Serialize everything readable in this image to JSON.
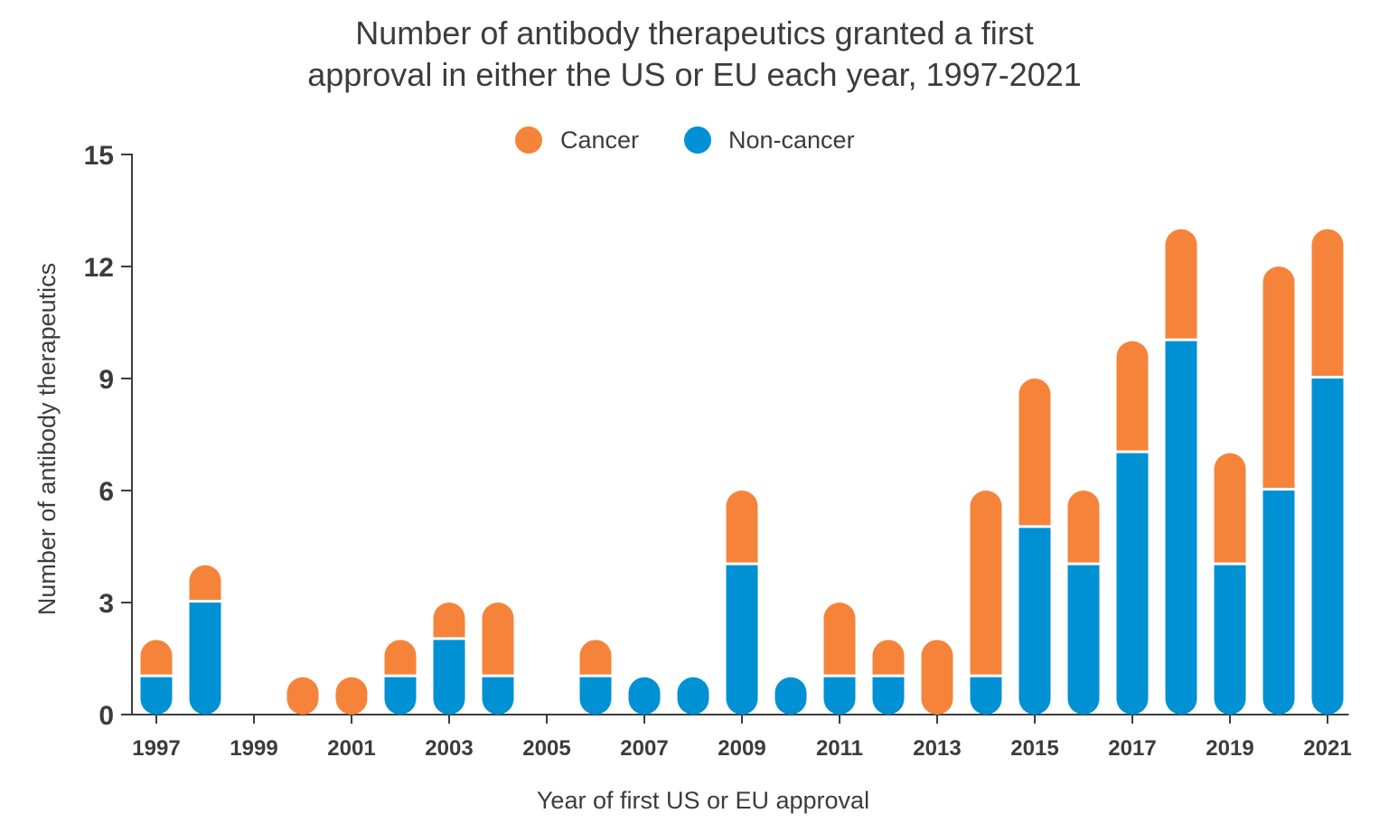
{
  "chart_data": {
    "type": "bar",
    "stacked": true,
    "title_lines": [
      "Number of antibody therapeutics granted a first",
      "approval in either the US or EU each year, 1997-2021"
    ],
    "xlabel": "Year of first US or EU approval",
    "ylabel": "Number of antibody therapeutics",
    "ylim": [
      0,
      15
    ],
    "yticks": [
      "0",
      "3",
      "6",
      "9",
      "12",
      "15"
    ],
    "xtick_labels": [
      "1997",
      "1999",
      "2001",
      "2003",
      "2005",
      "2007",
      "2009",
      "2011",
      "2013",
      "2015",
      "2017",
      "2019",
      "2021"
    ],
    "categories": [
      "1997",
      "1998",
      "1999",
      "2000",
      "2001",
      "2002",
      "2003",
      "2004",
      "2005",
      "2006",
      "2007",
      "2008",
      "2009",
      "2010",
      "2011",
      "2012",
      "2013",
      "2014",
      "2015",
      "2016",
      "2017",
      "2018",
      "2019",
      "2020",
      "2021"
    ],
    "series": [
      {
        "name": "Non-cancer",
        "color": "#0090d4",
        "values": [
          1,
          3,
          0,
          0,
          0,
          1,
          2,
          1,
          0,
          1,
          1,
          1,
          4,
          1,
          1,
          1,
          0,
          1,
          5,
          4,
          7,
          10,
          4,
          6,
          9
        ]
      },
      {
        "name": "Cancer",
        "color": "#f5843a",
        "values": [
          1,
          1,
          0,
          1,
          1,
          1,
          1,
          2,
          0,
          1,
          0,
          0,
          2,
          0,
          2,
          1,
          2,
          5,
          4,
          2,
          3,
          3,
          3,
          6,
          4
        ]
      }
    ],
    "legend": {
      "placement": "top-center",
      "order": [
        "Cancer",
        "Non-cancer"
      ]
    },
    "grid": false
  }
}
